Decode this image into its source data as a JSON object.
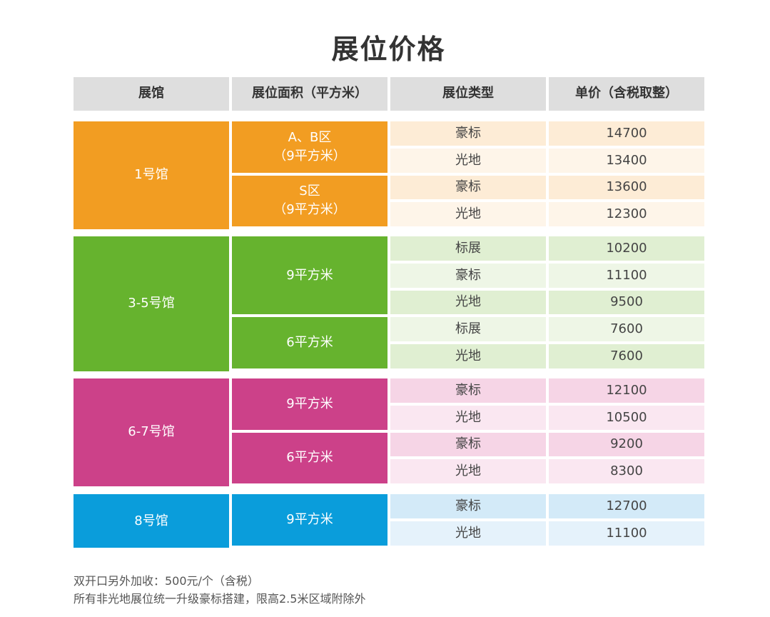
{
  "title": "展位价格",
  "headers": [
    "展馆",
    "展位面积（平方米）",
    "展位类型",
    "单价（含税取整）"
  ],
  "halls": [
    {
      "name": "1号馆",
      "color": "#f29d22",
      "light": "#fdecd6",
      "lighter": "#fef5e9",
      "areas": [
        {
          "label": "A、B区\n（9平方米）",
          "rows": [
            {
              "type": "豪标",
              "price": "14700"
            },
            {
              "type": "光地",
              "price": "13400"
            }
          ]
        },
        {
          "label": "S区\n（9平方米）",
          "rows": [
            {
              "type": "豪标",
              "price": "13600"
            },
            {
              "type": "光地",
              "price": "12300"
            }
          ]
        }
      ]
    },
    {
      "name": "3-5号馆",
      "color": "#66b32e",
      "light": "#e0efd2",
      "lighter": "#eef6e6",
      "areas": [
        {
          "label": "9平方米",
          "rows": [
            {
              "type": "标展",
              "price": "10200"
            },
            {
              "type": "豪标",
              "price": "11100"
            },
            {
              "type": "光地",
              "price": "9500"
            }
          ]
        },
        {
          "label": "6平方米",
          "rows": [
            {
              "type": "标展",
              "price": "7600"
            },
            {
              "type": "光地",
              "price": "7600"
            }
          ]
        }
      ]
    },
    {
      "name": "6-7号馆",
      "color": "#cc4189",
      "light": "#f6d5e6",
      "lighter": "#fae7f1",
      "areas": [
        {
          "label": "9平方米",
          "rows": [
            {
              "type": "豪标",
              "price": "12100"
            },
            {
              "type": "光地",
              "price": "10500"
            }
          ]
        },
        {
          "label": "6平方米",
          "rows": [
            {
              "type": "豪标",
              "price": "9200"
            },
            {
              "type": "光地",
              "price": "8300"
            }
          ]
        }
      ]
    },
    {
      "name": "8号馆",
      "color": "#0a9ddb",
      "light": "#d3eaf8",
      "lighter": "#e5f2fb",
      "areas": [
        {
          "label": "9平方米",
          "rows": [
            {
              "type": "豪标",
              "price": "12700"
            },
            {
              "type": "光地",
              "price": "11100"
            }
          ]
        }
      ]
    }
  ],
  "notes": [
    "双开口另外加收：500元/个（含税）",
    "所有非光地展位统一升级豪标搭建，限高2.5米区域附除外"
  ]
}
